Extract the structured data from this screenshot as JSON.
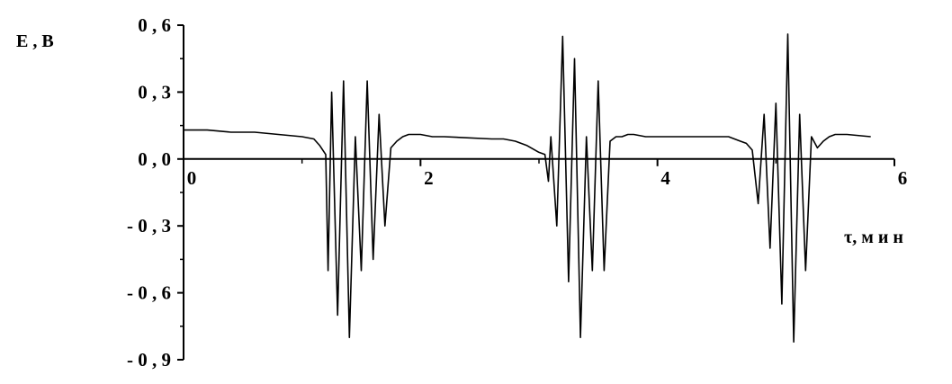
{
  "chart_data": {
    "type": "line",
    "title": "",
    "ylabel": "E , В",
    "xlabel": "τ, м и н",
    "xlim": [
      0,
      6
    ],
    "ylim": [
      -0.9,
      0.6
    ],
    "x_ticks": [
      0,
      2,
      4,
      6
    ],
    "x_tick_labels": [
      "0",
      "2",
      "4",
      "6"
    ],
    "y_ticks": [
      0.6,
      0.3,
      0.0,
      -0.3,
      -0.6,
      -0.9
    ],
    "y_tick_labels": [
      "0 , 6",
      "0 , 3",
      "0 , 0",
      "- 0 , 3",
      "- 0 , 6",
      "- 0 , 9"
    ],
    "grid": false,
    "line_color": "#000000",
    "series": [
      {
        "x": [
          0.0,
          0.2,
          0.4,
          0.6,
          0.8,
          1.0,
          1.1,
          1.15,
          1.2,
          1.22,
          1.25,
          1.3,
          1.35,
          1.4,
          1.45,
          1.5,
          1.55,
          1.6,
          1.65,
          1.7,
          1.75,
          1.8,
          1.85,
          1.9,
          2.0,
          2.1,
          2.2,
          2.6,
          2.7,
          2.8,
          2.9,
          3.0,
          3.05,
          3.08,
          3.1,
          3.15,
          3.2,
          3.25,
          3.3,
          3.35,
          3.4,
          3.45,
          3.5,
          3.55,
          3.6,
          3.65,
          3.7,
          3.75,
          3.8,
          3.9,
          4.0,
          4.6,
          4.7,
          4.75,
          4.8,
          4.85,
          4.9,
          4.95,
          5.0,
          5.05,
          5.1,
          5.15,
          5.2,
          5.25,
          5.3,
          5.35,
          5.4,
          5.45,
          5.5,
          5.6,
          5.8
        ],
        "y": [
          0.13,
          0.13,
          0.12,
          0.12,
          0.11,
          0.1,
          0.09,
          0.06,
          0.02,
          -0.5,
          0.3,
          -0.7,
          0.35,
          -0.8,
          0.1,
          -0.5,
          0.35,
          -0.45,
          0.2,
          -0.3,
          0.05,
          0.08,
          0.1,
          0.11,
          0.11,
          0.1,
          0.1,
          0.09,
          0.09,
          0.08,
          0.06,
          0.03,
          0.02,
          -0.1,
          0.1,
          -0.3,
          0.55,
          -0.55,
          0.45,
          -0.8,
          0.1,
          -0.5,
          0.35,
          -0.5,
          0.08,
          0.1,
          0.1,
          0.11,
          0.11,
          0.1,
          0.1,
          0.1,
          0.08,
          0.07,
          0.04,
          -0.2,
          0.2,
          -0.4,
          0.25,
          -0.65,
          0.56,
          -0.82,
          0.2,
          -0.5,
          0.1,
          0.05,
          0.08,
          0.1,
          0.11,
          0.11,
          0.1
        ]
      }
    ]
  }
}
